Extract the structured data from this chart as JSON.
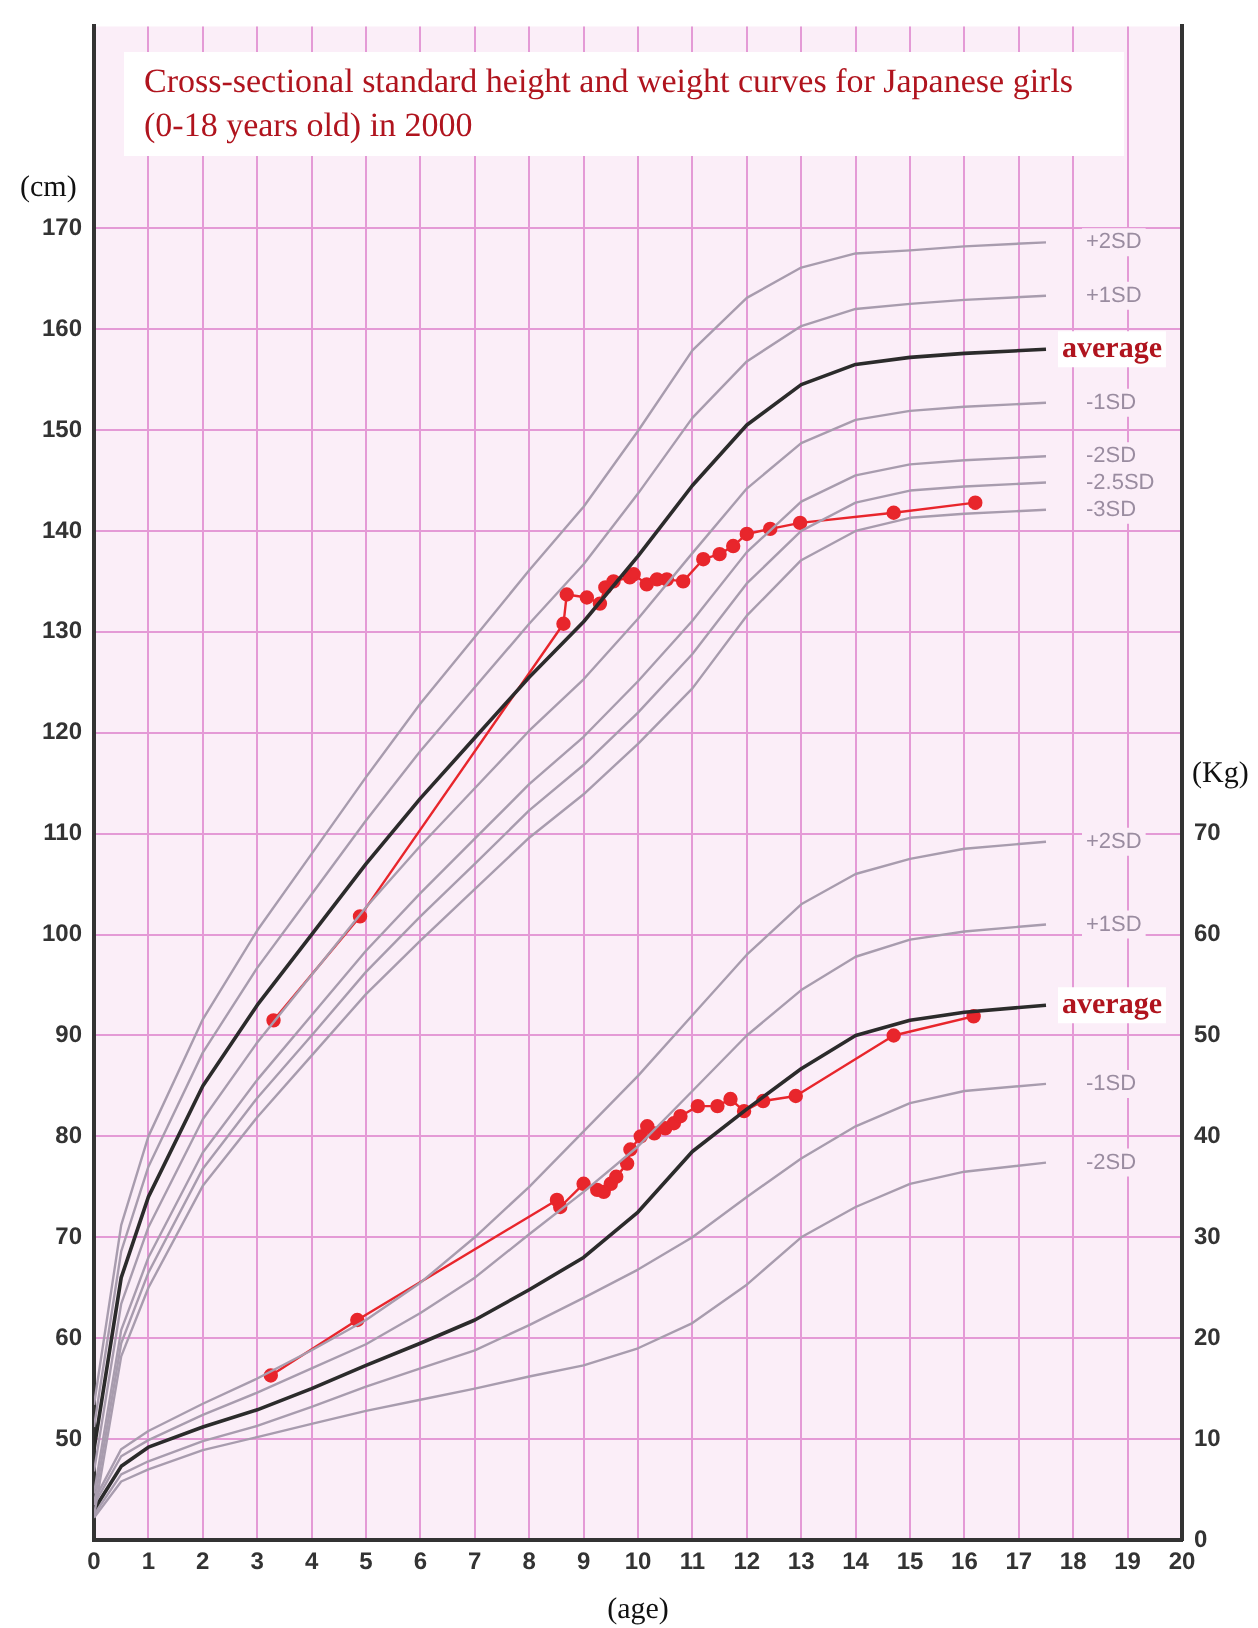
{
  "chart_data": {
    "type": "line",
    "title": "Cross-sectional standard height and weight curves for Japanese girls (0-18 years old) in 2000",
    "xlabel": "(age)",
    "ylabel": "(cm)",
    "y2label": "(Kg)",
    "x": [
      0,
      0.5,
      1,
      2,
      3,
      4,
      5,
      6,
      7,
      8,
      9,
      10,
      11,
      12,
      13,
      14,
      15,
      16,
      17.5
    ],
    "xlim": [
      0,
      20
    ],
    "xticks": [
      0,
      1,
      2,
      3,
      4,
      5,
      6,
      7,
      8,
      9,
      10,
      11,
      12,
      13,
      14,
      15,
      16,
      17,
      18,
      19,
      20
    ],
    "ylim": [
      40,
      190
    ],
    "yticks": [
      50,
      60,
      70,
      80,
      90,
      100,
      110,
      120,
      130,
      140,
      150,
      160,
      170
    ],
    "y2lim": [
      0,
      150
    ],
    "y2ticks": [
      0,
      10,
      20,
      30,
      40,
      50,
      60,
      70
    ],
    "grid": true,
    "series": [
      {
        "name": "+2SD",
        "color": "#a89cae",
        "values": [
          53.4,
          71.2,
          80,
          91.6,
          100.4,
          108,
          115.6,
          122.9,
          129.5,
          136.1,
          142.4,
          149.9,
          157.9,
          163.1,
          166.1,
          167.5,
          167.8,
          168.2,
          168.6
        ]
      },
      {
        "name": "+1SD",
        "color": "#a89cae",
        "values": [
          51.2,
          68.6,
          77,
          88.3,
          96.7,
          104,
          111.3,
          118.2,
          124.5,
          130.8,
          136.7,
          143.7,
          151.2,
          156.8,
          160.3,
          162,
          162.5,
          162.9,
          163.3
        ]
      },
      {
        "name": "average",
        "color": "#2b2b2b",
        "values": [
          49,
          66,
          74,
          85,
          93,
          100,
          107,
          113.5,
          119.5,
          125.5,
          131,
          137.5,
          144.5,
          150.5,
          154.5,
          156.5,
          157.2,
          157.6,
          158
        ]
      },
      {
        "name": "-1SD",
        "color": "#a89cae",
        "values": [
          46.8,
          63.4,
          71,
          81.7,
          89.3,
          96,
          102.7,
          108.8,
          114.5,
          120.2,
          125.3,
          131.3,
          137.8,
          144.2,
          148.7,
          151,
          151.9,
          152.3,
          152.7
        ]
      },
      {
        "name": "-2SD",
        "color": "#a89cae",
        "values": [
          44.6,
          60.8,
          68,
          78.4,
          85.6,
          92,
          98.4,
          104.1,
          109.5,
          114.9,
          119.6,
          125.1,
          131.1,
          137.9,
          142.9,
          145.5,
          146.6,
          147,
          147.4
        ]
      },
      {
        "name": "-2.5SD",
        "color": "#a89cae",
        "values": [
          43.5,
          59.5,
          66.5,
          76.8,
          83.8,
          90,
          96.3,
          101.8,
          107,
          112.3,
          116.8,
          122,
          127.8,
          134.8,
          140,
          142.8,
          144,
          144.4,
          144.8
        ]
      },
      {
        "name": "-3SD",
        "color": "#a89cae",
        "values": [
          42.4,
          58.2,
          65,
          75.1,
          81.9,
          88,
          94.1,
          99.4,
          104.5,
          109.6,
          113.9,
          118.9,
          124.4,
          131.6,
          137.1,
          140,
          141.3,
          141.7,
          142.1
        ]
      },
      {
        "name": "+2SD",
        "color": "#a89cae",
        "axis": "y2",
        "values": [
          3.9,
          9,
          10.8,
          13.5,
          16,
          18.8,
          21.8,
          25.5,
          30,
          35,
          40.5,
          46,
          52,
          58,
          63,
          66,
          67.5,
          68.5,
          69.2
        ]
      },
      {
        "name": "+1SD",
        "color": "#a89cae",
        "axis": "y2",
        "values": [
          3.5,
          8.3,
          9.9,
          12.4,
          14.6,
          17,
          19.4,
          22.5,
          26,
          30.3,
          34.5,
          39,
          44.5,
          50,
          54.5,
          57.8,
          59.5,
          60.3,
          61
        ]
      },
      {
        "name": "average",
        "color": "#2b2b2b",
        "axis": "y2",
        "values": [
          3,
          7.3,
          9.2,
          11.2,
          12.9,
          15,
          17.3,
          19.5,
          21.8,
          24.8,
          28,
          32.5,
          38.5,
          42.7,
          46.7,
          50,
          51.5,
          52.3,
          53
        ]
      },
      {
        "name": "-1SD",
        "color": "#a89cae",
        "axis": "y2",
        "values": [
          2.5,
          6.5,
          7.8,
          9.8,
          11.3,
          13.2,
          15.2,
          17,
          18.8,
          21.3,
          24,
          26.8,
          30,
          34,
          37.8,
          41,
          43.3,
          44.5,
          45.2
        ]
      },
      {
        "name": "-2SD",
        "color": "#a89cae",
        "axis": "y2",
        "values": [
          2.2,
          5.8,
          7,
          8.9,
          10.2,
          11.5,
          12.8,
          13.9,
          15,
          16.2,
          17.3,
          19,
          21.5,
          25.3,
          30,
          33,
          35.3,
          36.5,
          37.4
        ]
      },
      {
        "color": "#e8262c",
        "marker": "circle",
        "x": [
          3.3,
          4.89,
          8.63,
          8.69,
          9.06,
          9.3,
          9.4,
          9.55,
          9.85,
          9.92,
          10.16,
          10.35,
          10.53,
          10.83,
          11.2,
          11.5,
          11.75,
          12.0,
          12.43,
          12.98,
          14.7,
          16.2
        ],
        "values": [
          91.5,
          101.8,
          130.8,
          133.7,
          133.4,
          132.8,
          134.4,
          135,
          135.4,
          135.7,
          134.7,
          135.2,
          135.2,
          135,
          137.2,
          137.7,
          138.5,
          139.7,
          140.2,
          140.8,
          141.8,
          142.8
        ]
      },
      {
        "color": "#e8262c",
        "marker": "circle",
        "axis": "y2",
        "x": [
          3.25,
          4.84,
          8.51,
          8.57,
          9,
          9.25,
          9.37,
          9.5,
          9.6,
          9.8,
          9.86,
          10.05,
          10.17,
          10.3,
          10.5,
          10.66,
          10.78,
          11.1,
          11.46,
          11.7,
          11.95,
          12.3,
          12.9,
          14.7,
          16.17
        ],
        "values": [
          16.3,
          21.8,
          33.7,
          33,
          35.3,
          34.7,
          34.5,
          35.3,
          36,
          37.3,
          38.7,
          40,
          41,
          40.3,
          40.8,
          41.3,
          42,
          43,
          43,
          43.7,
          42.5,
          43.5,
          44,
          50,
          51.9
        ]
      }
    ]
  }
}
